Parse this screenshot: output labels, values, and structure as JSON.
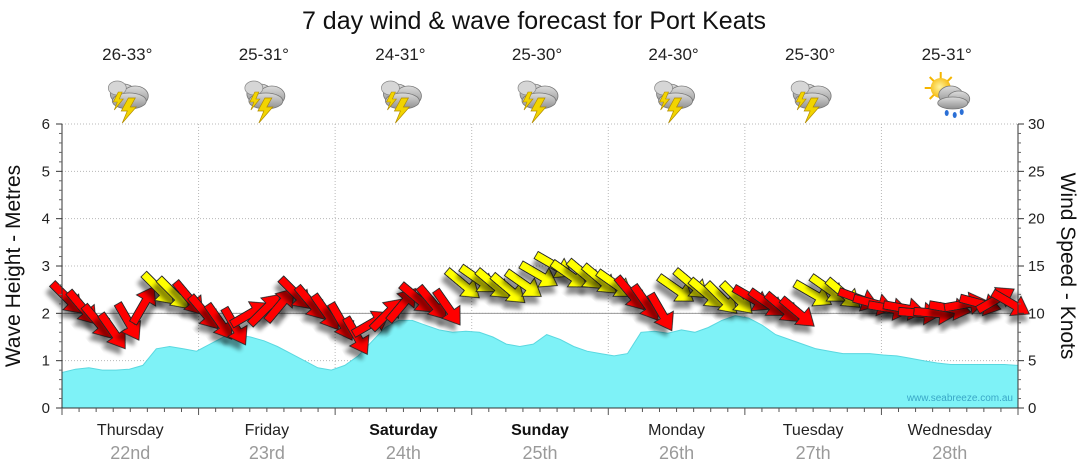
{
  "chart_data": {
    "type": "area",
    "title": "7 day wind & wave forecast for Port Keats",
    "ylabel_left": "Wave Height - Metres",
    "ylabel_right": "Wind Speed - Knots",
    "ylim_left": [
      0,
      6
    ],
    "ylim_right": [
      0,
      30
    ],
    "yticks_left": [
      "0",
      "1",
      "2",
      "3",
      "4",
      "5",
      "6"
    ],
    "yticks_right": [
      "0",
      "5",
      "10",
      "15",
      "20",
      "25",
      "30"
    ],
    "grid": "dotted",
    "credit": "www.seabreeze.com.au",
    "days": [
      {
        "name": "Thursday",
        "date": "22nd",
        "temp": "26-33°",
        "weekend": false,
        "icon": "storm-cloud-icon"
      },
      {
        "name": "Friday",
        "date": "23rd",
        "temp": "25-31°",
        "weekend": false,
        "icon": "storm-cloud-icon"
      },
      {
        "name": "Saturday",
        "date": "24th",
        "temp": "24-31°",
        "weekend": true,
        "icon": "storm-cloud-icon"
      },
      {
        "name": "Sunday",
        "date": "25th",
        "temp": "25-30°",
        "weekend": true,
        "icon": "storm-cloud-icon"
      },
      {
        "name": "Monday",
        "date": "26th",
        "temp": "24-30°",
        "weekend": false,
        "icon": "storm-cloud-icon"
      },
      {
        "name": "Tuesday",
        "date": "27th",
        "temp": "25-30°",
        "weekend": false,
        "icon": "storm-cloud-icon"
      },
      {
        "name": "Wednesday",
        "date": "28th",
        "temp": "25-31°",
        "weekend": false,
        "icon": "sun-rain-cloud-icon"
      }
    ],
    "wave_height_m": [
      0.75,
      0.82,
      0.85,
      0.8,
      0.8,
      0.82,
      0.9,
      1.25,
      1.3,
      1.25,
      1.2,
      1.35,
      1.5,
      1.55,
      1.5,
      1.42,
      1.3,
      1.15,
      1.0,
      0.85,
      0.8,
      0.9,
      1.1,
      1.4,
      1.7,
      1.85,
      1.85,
      1.75,
      1.65,
      1.6,
      1.62,
      1.6,
      1.5,
      1.35,
      1.3,
      1.35,
      1.55,
      1.45,
      1.3,
      1.2,
      1.15,
      1.1,
      1.15,
      1.6,
      1.62,
      1.58,
      1.65,
      1.6,
      1.7,
      1.85,
      1.95,
      1.9,
      1.75,
      1.55,
      1.45,
      1.35,
      1.25,
      1.2,
      1.15,
      1.15,
      1.15,
      1.12,
      1.1,
      1.05,
      1.0,
      0.95,
      0.92,
      0.92,
      0.92,
      0.92,
      0.92,
      0.9
    ],
    "wind_colors": {
      "strong": "#ff0000",
      "moderate": "#ffff00"
    },
    "wind": [
      {
        "kt": 11.5,
        "dir": 135,
        "c": "strong"
      },
      {
        "kt": 10.5,
        "dir": 140,
        "c": "strong"
      },
      {
        "kt": 9,
        "dir": 140,
        "c": "strong"
      },
      {
        "kt": 8,
        "dir": 145,
        "c": "strong"
      },
      {
        "kt": 9,
        "dir": 150,
        "c": "strong"
      },
      {
        "kt": 11,
        "dir": 30,
        "c": "strong"
      },
      {
        "kt": 12.5,
        "dir": 135,
        "c": "moderate"
      },
      {
        "kt": 12,
        "dir": 135,
        "c": "moderate"
      },
      {
        "kt": 11.5,
        "dir": 140,
        "c": "strong"
      },
      {
        "kt": 10,
        "dir": 140,
        "c": "strong"
      },
      {
        "kt": 9,
        "dir": 145,
        "c": "strong"
      },
      {
        "kt": 8.5,
        "dir": 150,
        "c": "strong"
      },
      {
        "kt": 10,
        "dir": 60,
        "c": "strong"
      },
      {
        "kt": 10.5,
        "dir": 45,
        "c": "strong"
      },
      {
        "kt": 11,
        "dir": 40,
        "c": "strong"
      },
      {
        "kt": 12,
        "dir": 135,
        "c": "strong"
      },
      {
        "kt": 11,
        "dir": 140,
        "c": "strong"
      },
      {
        "kt": 10,
        "dir": 145,
        "c": "strong"
      },
      {
        "kt": 9,
        "dir": 150,
        "c": "strong"
      },
      {
        "kt": 7.5,
        "dir": 150,
        "c": "strong"
      },
      {
        "kt": 9,
        "dir": 60,
        "c": "strong"
      },
      {
        "kt": 10,
        "dir": 45,
        "c": "strong"
      },
      {
        "kt": 11,
        "dir": 40,
        "c": "strong"
      },
      {
        "kt": 11.5,
        "dir": 130,
        "c": "strong"
      },
      {
        "kt": 11,
        "dir": 140,
        "c": "strong"
      },
      {
        "kt": 10.5,
        "dir": 145,
        "c": "strong"
      },
      {
        "kt": 13,
        "dir": 130,
        "c": "moderate"
      },
      {
        "kt": 13.5,
        "dir": 125,
        "c": "moderate"
      },
      {
        "kt": 13,
        "dir": 130,
        "c": "moderate"
      },
      {
        "kt": 12.5,
        "dir": 130,
        "c": "moderate"
      },
      {
        "kt": 13,
        "dir": 125,
        "c": "moderate"
      },
      {
        "kt": 14,
        "dir": 120,
        "c": "moderate"
      },
      {
        "kt": 15,
        "dir": 120,
        "c": "moderate"
      },
      {
        "kt": 14,
        "dir": 125,
        "c": "moderate"
      },
      {
        "kt": 14,
        "dir": 130,
        "c": "moderate"
      },
      {
        "kt": 13.5,
        "dir": 130,
        "c": "moderate"
      },
      {
        "kt": 13,
        "dir": 125,
        "c": "moderate"
      },
      {
        "kt": 12,
        "dir": 140,
        "c": "strong"
      },
      {
        "kt": 11,
        "dir": 145,
        "c": "strong"
      },
      {
        "kt": 10,
        "dir": 150,
        "c": "strong"
      },
      {
        "kt": 12.5,
        "dir": 125,
        "c": "moderate"
      },
      {
        "kt": 13,
        "dir": 130,
        "c": "moderate"
      },
      {
        "kt": 12,
        "dir": 130,
        "c": "moderate"
      },
      {
        "kt": 11.5,
        "dir": 135,
        "c": "moderate"
      },
      {
        "kt": 11.5,
        "dir": 135,
        "c": "moderate"
      },
      {
        "kt": 11.5,
        "dir": 120,
        "c": "strong"
      },
      {
        "kt": 11,
        "dir": 125,
        "c": "strong"
      },
      {
        "kt": 10.5,
        "dir": 130,
        "c": "strong"
      },
      {
        "kt": 10,
        "dir": 130,
        "c": "strong"
      },
      {
        "kt": 12,
        "dir": 120,
        "c": "moderate"
      },
      {
        "kt": 12.5,
        "dir": 125,
        "c": "moderate"
      },
      {
        "kt": 12,
        "dir": 130,
        "c": "moderate"
      },
      {
        "kt": 11.5,
        "dir": 110,
        "c": "strong"
      },
      {
        "kt": 11,
        "dir": 105,
        "c": "strong"
      },
      {
        "kt": 10.5,
        "dir": 100,
        "c": "strong"
      },
      {
        "kt": 10.5,
        "dir": 100,
        "c": "strong"
      },
      {
        "kt": 10,
        "dir": 95,
        "c": "strong"
      },
      {
        "kt": 10,
        "dir": 95,
        "c": "strong"
      },
      {
        "kt": 10.5,
        "dir": 100,
        "c": "strong"
      },
      {
        "kt": 11,
        "dir": 80,
        "c": "strong"
      },
      {
        "kt": 11,
        "dir": 105,
        "c": "strong"
      },
      {
        "kt": 11.5,
        "dir": 60,
        "c": "strong"
      },
      {
        "kt": 11,
        "dir": 120,
        "c": "strong"
      }
    ]
  }
}
